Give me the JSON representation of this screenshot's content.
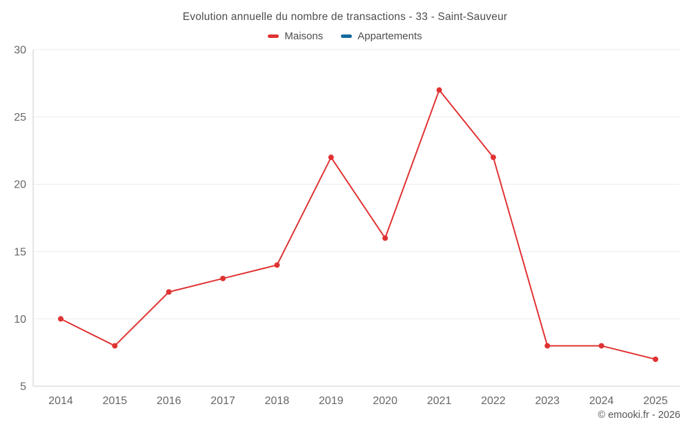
{
  "watermark": "© emooki.fr - 2026",
  "chart_data": {
    "type": "line",
    "title": "Evolution annuelle du nombre de transactions - 33 - Saint-Sauveur",
    "categories": [
      "2014",
      "2015",
      "2016",
      "2017",
      "2018",
      "2019",
      "2020",
      "2021",
      "2022",
      "2023",
      "2024",
      "2025"
    ],
    "series": [
      {
        "name": "Maisons",
        "color": "#e03232",
        "values": [
          10,
          8,
          12,
          13,
          14,
          22,
          16,
          27,
          22,
          8,
          8,
          7
        ]
      },
      {
        "name": "Appartements",
        "color": "#136a9f",
        "values": []
      }
    ],
    "xlabel": "",
    "ylabel": "",
    "ylim": [
      5,
      30
    ],
    "yticks": [
      5,
      10,
      15,
      20,
      25,
      30
    ],
    "grid": true,
    "legend_position": "top",
    "colors": {
      "grid": "#ebebeb",
      "axis": "#cccccc",
      "tick_text": "#666666",
      "title_text": "#4d4d4d"
    }
  }
}
